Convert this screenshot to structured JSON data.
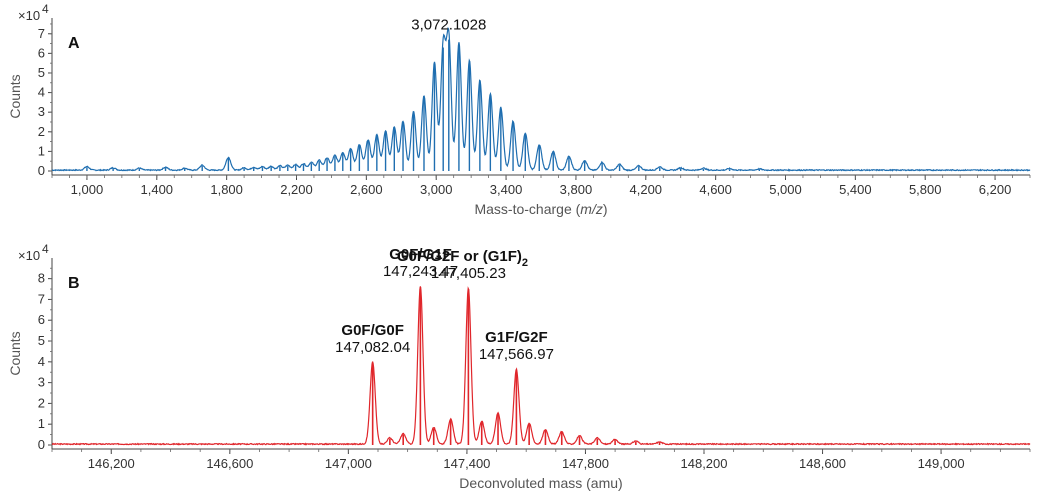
{
  "chart_data": [
    {
      "type": "line",
      "panel_label": "A",
      "xlabel_pre": "Mass-to-charge (",
      "xlabel_em": "m/z",
      "xlabel_post": ")",
      "ylabel": "Counts",
      "y_multiplier_base": "×10",
      "y_multiplier_exp": "4",
      "xlim": [
        800,
        6400
      ],
      "ylim": [
        0,
        7.6
      ],
      "x_ticks": [
        1000,
        1400,
        1800,
        2200,
        2600,
        3000,
        3400,
        3800,
        4200,
        4600,
        5000,
        5400,
        5800,
        6200
      ],
      "x_tick_labels": [
        "1,000",
        "1,400",
        "1,800",
        "2,200",
        "2,600",
        "3,000",
        "3,400",
        "3,800",
        "4,200",
        "4,600",
        "5,000",
        "5,400",
        "5,800",
        "6,200"
      ],
      "y_ticks": [
        0,
        1,
        2,
        3,
        4,
        5,
        6,
        7
      ],
      "y_tick_labels": [
        "0",
        "1",
        "2",
        "3",
        "4",
        "5",
        "6",
        "7"
      ],
      "color": "#1f6eb0",
      "annotations": [
        {
          "x": 3072.1028,
          "y": 6.7,
          "text": "3,072.1028"
        }
      ],
      "peaks": [
        {
          "x": 1000,
          "y": 0.18
        },
        {
          "x": 1150,
          "y": 0.12
        },
        {
          "x": 1300,
          "y": 0.1
        },
        {
          "x": 1450,
          "y": 0.15
        },
        {
          "x": 1560,
          "y": 0.1
        },
        {
          "x": 1660,
          "y": 0.25
        },
        {
          "x": 1810,
          "y": 0.65
        },
        {
          "x": 1900,
          "y": 0.12
        },
        {
          "x": 1955,
          "y": 0.15
        },
        {
          "x": 2005,
          "y": 0.18
        },
        {
          "x": 2055,
          "y": 0.2
        },
        {
          "x": 2105,
          "y": 0.22
        },
        {
          "x": 2150,
          "y": 0.25
        },
        {
          "x": 2195,
          "y": 0.28
        },
        {
          "x": 2240,
          "y": 0.33
        },
        {
          "x": 2285,
          "y": 0.4
        },
        {
          "x": 2330,
          "y": 0.5
        },
        {
          "x": 2375,
          "y": 0.62
        },
        {
          "x": 2420,
          "y": 0.75
        },
        {
          "x": 2465,
          "y": 0.9
        },
        {
          "x": 2510,
          "y": 1.1
        },
        {
          "x": 2560,
          "y": 1.3
        },
        {
          "x": 2610,
          "y": 1.55
        },
        {
          "x": 2660,
          "y": 1.8
        },
        {
          "x": 2710,
          "y": 2.0
        },
        {
          "x": 2760,
          "y": 2.2
        },
        {
          "x": 2810,
          "y": 2.5
        },
        {
          "x": 2870,
          "y": 3.0
        },
        {
          "x": 2930,
          "y": 3.8
        },
        {
          "x": 2990,
          "y": 5.5
        },
        {
          "x": 3040,
          "y": 6.3
        },
        {
          "x": 3072,
          "y": 6.7
        },
        {
          "x": 3130,
          "y": 6.5
        },
        {
          "x": 3190,
          "y": 5.6
        },
        {
          "x": 3250,
          "y": 4.6
        },
        {
          "x": 3310,
          "y": 3.9
        },
        {
          "x": 3370,
          "y": 3.2
        },
        {
          "x": 3440,
          "y": 2.5
        },
        {
          "x": 3510,
          "y": 1.9
        },
        {
          "x": 3590,
          "y": 1.3
        },
        {
          "x": 3670,
          "y": 0.95
        },
        {
          "x": 3760,
          "y": 0.7
        },
        {
          "x": 3850,
          "y": 0.5
        },
        {
          "x": 3950,
          "y": 0.4
        },
        {
          "x": 4050,
          "y": 0.3
        },
        {
          "x": 4160,
          "y": 0.22
        },
        {
          "x": 4280,
          "y": 0.17
        },
        {
          "x": 4400,
          "y": 0.12
        },
        {
          "x": 4530,
          "y": 0.1
        },
        {
          "x": 4680,
          "y": 0.08
        },
        {
          "x": 4850,
          "y": 0.06
        }
      ]
    },
    {
      "type": "line",
      "panel_label": "B",
      "xlabel": "Deconvoluted mass (amu)",
      "ylabel": "Counts",
      "y_multiplier_base": "×10",
      "y_multiplier_exp": "4",
      "xlim": [
        146000,
        149300
      ],
      "ylim": [
        0,
        8.8
      ],
      "x_ticks": [
        146200,
        146600,
        147000,
        147400,
        147800,
        148200,
        148600,
        149000
      ],
      "x_tick_labels": [
        "146,200",
        "146,600",
        "147,000",
        "147,400",
        "147,800",
        "148,200",
        "148,600",
        "149,000"
      ],
      "y_ticks": [
        0,
        1,
        2,
        3,
        4,
        5,
        6,
        7,
        8
      ],
      "y_tick_labels": [
        "0",
        "1",
        "2",
        "3",
        "4",
        "5",
        "6",
        "7",
        "8"
      ],
      "color": "#e0262b",
      "annotations": [
        {
          "x": 147082.04,
          "y": 3.95,
          "name": "G0F/G0F",
          "value": "147,082.04"
        },
        {
          "x": 147243.47,
          "y": 7.6,
          "name": "G0F/G1F",
          "value": "147,243.47"
        },
        {
          "x": 147405.23,
          "y": 7.5,
          "name": "G0F/G2F or (G1F)",
          "name_sub": "2",
          "value": "147,405.23"
        },
        {
          "x": 147566.97,
          "y": 3.6,
          "name": "G1F/G2F",
          "value": "147,566.97"
        }
      ],
      "peaks": [
        {
          "x": 147082,
          "y": 3.95
        },
        {
          "x": 147140,
          "y": 0.3
        },
        {
          "x": 147185,
          "y": 0.5
        },
        {
          "x": 147243,
          "y": 7.6
        },
        {
          "x": 147288,
          "y": 0.8
        },
        {
          "x": 147345,
          "y": 1.2
        },
        {
          "x": 147405,
          "y": 7.5
        },
        {
          "x": 147450,
          "y": 1.1
        },
        {
          "x": 147505,
          "y": 1.5
        },
        {
          "x": 147567,
          "y": 3.6
        },
        {
          "x": 147610,
          "y": 1.0
        },
        {
          "x": 147665,
          "y": 0.7
        },
        {
          "x": 147720,
          "y": 0.6
        },
        {
          "x": 147780,
          "y": 0.4
        },
        {
          "x": 147840,
          "y": 0.3
        },
        {
          "x": 147900,
          "y": 0.22
        },
        {
          "x": 147970,
          "y": 0.15
        },
        {
          "x": 148050,
          "y": 0.1
        }
      ]
    }
  ]
}
